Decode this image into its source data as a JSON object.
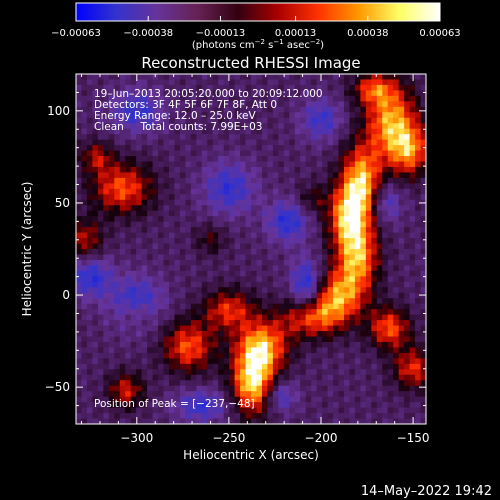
{
  "chart_data": {
    "type": "heatmap",
    "title": "Reconstructed RHESSI Image",
    "xlabel": "Heliocentric X (arcsec)",
    "ylabel": "Heliocentric Y (arcsec)",
    "xlim": [
      -333,
      -143
    ],
    "ylim": [
      -70,
      120
    ],
    "x_ticks": [
      -300,
      -250,
      -200,
      -150
    ],
    "x_tick_labels": [
      "−300",
      "−250",
      "−200",
      "−150"
    ],
    "y_ticks": [
      -50,
      0,
      50,
      100
    ],
    "y_tick_labels": [
      "−50",
      "0",
      "50",
      "100"
    ],
    "colorbar": {
      "min": -0.00063,
      "max": 0.00063,
      "ticks": [
        -0.00063,
        -0.00038,
        -0.00013,
        0.00013,
        0.00038,
        0.00063
      ],
      "tick_labels": [
        "−0.00063",
        "−0.00038",
        "−0.00013",
        "0.00013",
        "0.00038",
        "0.00063"
      ],
      "unit_prefix": "(photons cm",
      "unit_sup1": "−2",
      "unit_mid1": " s",
      "unit_sup2": "−1",
      "unit_mid2": " asec",
      "unit_sup3": "−2",
      "unit_suffix": ")",
      "colors": [
        "#0000ff",
        "#3333cc",
        "#663399",
        "#662255",
        "#330011",
        "#aa0000",
        "#ff3300",
        "#ff9900",
        "#ffff66",
        "#ffffff"
      ]
    },
    "annotations": {
      "time_range": "19–Jun–2013 20:05:20.000 to 20:09:12.000",
      "detectors": "Detectors: 3F 4F 5F 6F 7F 8F, Att 0",
      "energy_range": "Energy Range: 12.0 – 25.0 keV",
      "clean_counts": "Clean     Total counts: 7.99E+03",
      "peak_position": "Position of Peak = [−237,−48]"
    },
    "peak": [
      -237,
      -48
    ],
    "features": [
      {
        "x": -162,
        "y": 95,
        "level": 0.85,
        "sx": 10,
        "sy": 14
      },
      {
        "x": -152,
        "y": 78,
        "level": 0.7,
        "sx": 8,
        "sy": 10
      },
      {
        "x": -178,
        "y": 62,
        "level": 0.9,
        "sx": 8,
        "sy": 14
      },
      {
        "x": -185,
        "y": 42,
        "level": 0.85,
        "sx": 8,
        "sy": 12
      },
      {
        "x": -180,
        "y": 20,
        "level": 0.8,
        "sx": 8,
        "sy": 12
      },
      {
        "x": -190,
        "y": 0,
        "level": 0.75,
        "sx": 10,
        "sy": 10
      },
      {
        "x": -205,
        "y": -12,
        "level": 0.7,
        "sx": 12,
        "sy": 8
      },
      {
        "x": -163,
        "y": -18,
        "level": 0.7,
        "sx": 8,
        "sy": 8
      },
      {
        "x": -150,
        "y": -40,
        "level": 0.6,
        "sx": 8,
        "sy": 8
      },
      {
        "x": -237,
        "y": -48,
        "level": 1.0,
        "sx": 8,
        "sy": 12
      },
      {
        "x": -232,
        "y": -28,
        "level": 0.85,
        "sx": 10,
        "sy": 10
      },
      {
        "x": -250,
        "y": -8,
        "level": 0.6,
        "sx": 10,
        "sy": 8
      },
      {
        "x": -272,
        "y": -28,
        "level": 0.7,
        "sx": 10,
        "sy": 10
      },
      {
        "x": -306,
        "y": -52,
        "level": 0.55,
        "sx": 7,
        "sy": 7
      },
      {
        "x": -308,
        "y": 58,
        "level": 0.7,
        "sx": 12,
        "sy": 10
      },
      {
        "x": -328,
        "y": 30,
        "level": 0.5,
        "sx": 7,
        "sy": 8
      },
      {
        "x": -322,
        "y": 75,
        "level": 0.45,
        "sx": 6,
        "sy": 6
      },
      {
        "x": -172,
        "y": 112,
        "level": 0.55,
        "sx": 8,
        "sy": 6
      },
      {
        "x": -205,
        "y": 52,
        "level": 0.3,
        "sx": 6,
        "sy": 6
      },
      {
        "x": -260,
        "y": 30,
        "level": 0.3,
        "sx": 6,
        "sy": 6
      },
      {
        "x": -300,
        "y": -10,
        "level": 0.35,
        "sx": 7,
        "sy": 6
      },
      {
        "x": -265,
        "y": -60,
        "level": -0.5,
        "sx": 10,
        "sy": 6
      },
      {
        "x": -300,
        "y": -5,
        "level": -0.6,
        "sx": 10,
        "sy": 10
      },
      {
        "x": -325,
        "y": 10,
        "level": -0.55,
        "sx": 8,
        "sy": 8
      },
      {
        "x": -218,
        "y": 40,
        "level": -0.55,
        "sx": 8,
        "sy": 8
      },
      {
        "x": -250,
        "y": 58,
        "level": -0.5,
        "sx": 10,
        "sy": 10
      },
      {
        "x": -208,
        "y": 5,
        "level": -0.65,
        "sx": 6,
        "sy": 10
      },
      {
        "x": -222,
        "y": -55,
        "level": -0.45,
        "sx": 6,
        "sy": 6
      },
      {
        "x": -300,
        "y": 100,
        "level": -0.5,
        "sx": 10,
        "sy": 8
      },
      {
        "x": -200,
        "y": 95,
        "level": -0.45,
        "sx": 8,
        "sy": 8
      },
      {
        "x": -165,
        "y": 50,
        "level": -0.45,
        "sx": 6,
        "sy": 8
      }
    ]
  },
  "footer": {
    "datetime": "14–May–2022 19:42"
  }
}
